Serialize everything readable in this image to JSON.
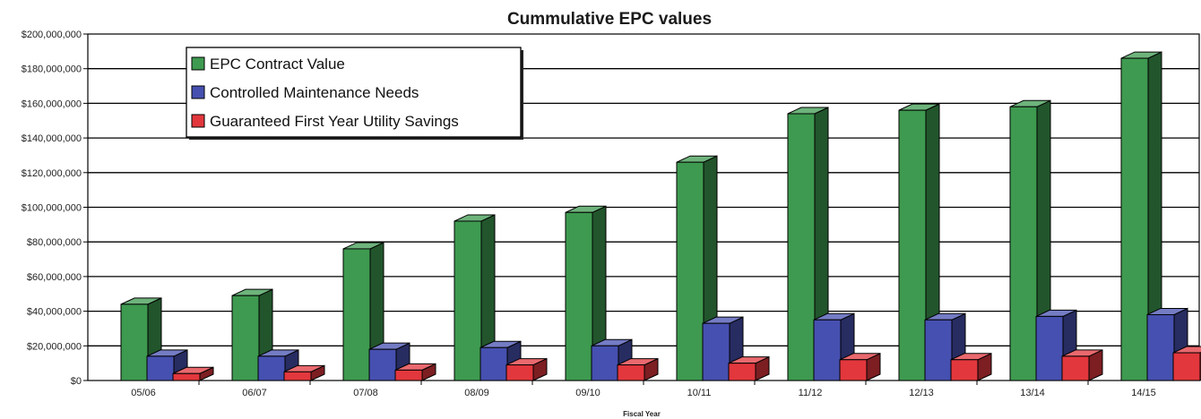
{
  "chart_data": {
    "type": "bar",
    "title": "Cummulative EPC values",
    "xlabel": "Fiscal Year",
    "ylabel": "",
    "ylim": [
      0,
      200000000
    ],
    "y_ticks": [
      "$0",
      "$20,000,000",
      "$40,000,000",
      "$60,000,000",
      "$80,000,000",
      "$100,000,000",
      "$120,000,000",
      "$140,000,000",
      "$160,000,000",
      "$180,000,000",
      "$200,000,000"
    ],
    "categories": [
      "05/06",
      "06/07",
      "07/08",
      "08/09",
      "09/10",
      "10/11",
      "11/12",
      "12/13",
      "13/14",
      "14/15"
    ],
    "grid": true,
    "legend_position": "top-left",
    "series": [
      {
        "name": "EPC Contract Value",
        "color": "#3e9a50",
        "values": [
          44000000,
          49000000,
          76000000,
          92000000,
          97000000,
          126000000,
          154000000,
          156000000,
          158000000,
          186000000
        ]
      },
      {
        "name": "Controlled Maintenance Needs",
        "color": "#4650b0",
        "values": [
          14000000,
          14000000,
          18000000,
          19000000,
          20000000,
          33000000,
          35000000,
          35000000,
          37000000,
          38000000
        ]
      },
      {
        "name": "Guaranteed First Year Utility Savings",
        "color": "#e2373d",
        "values": [
          4000000,
          5000000,
          6000000,
          9000000,
          9000000,
          10000000,
          12000000,
          12000000,
          14000000,
          16000000
        ]
      }
    ]
  }
}
